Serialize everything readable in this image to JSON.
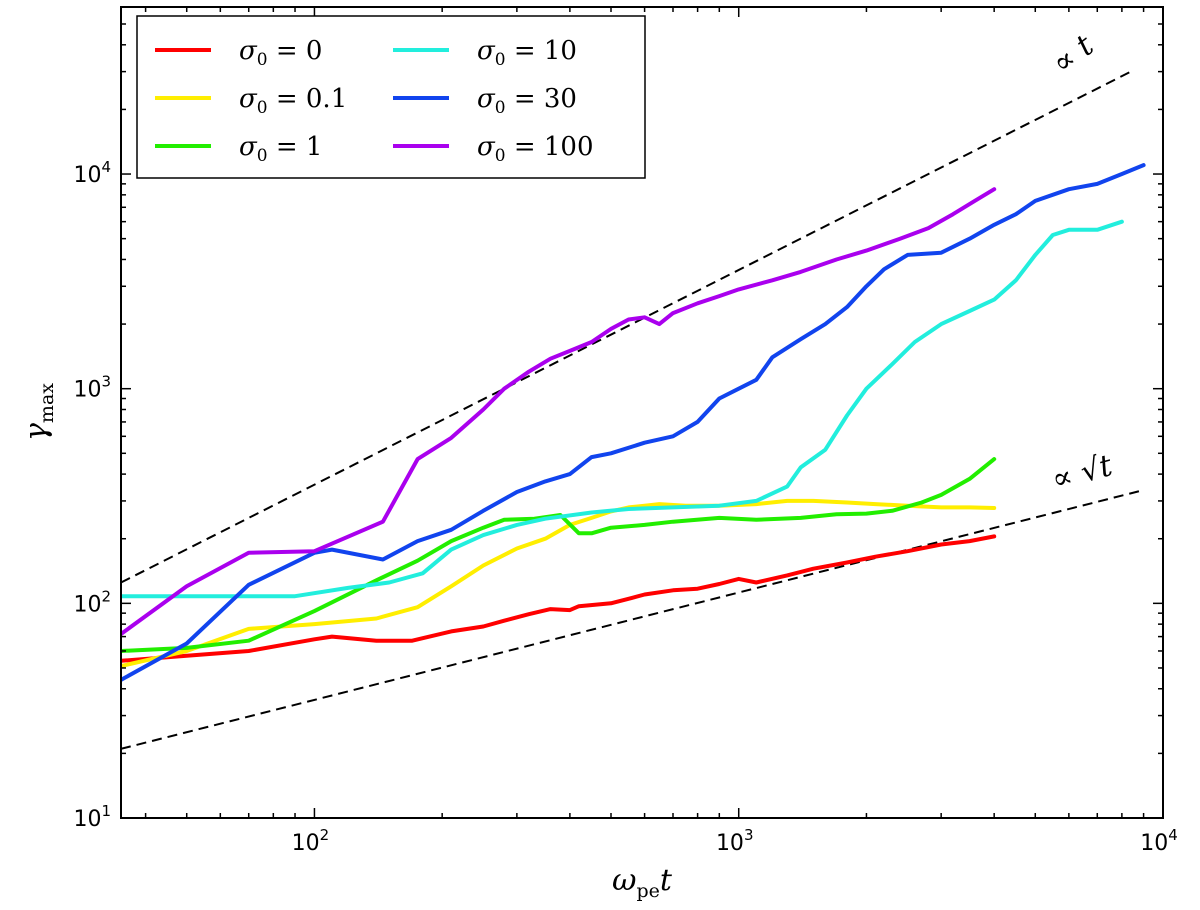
{
  "chart_data": {
    "type": "line",
    "xscale": "log",
    "yscale": "log",
    "xlim": [
      35,
      10000
    ],
    "ylim": [
      10,
      60000
    ],
    "x_tick_labels": [
      {
        "base": "10",
        "exp": "2",
        "value": 100
      },
      {
        "base": "10",
        "exp": "3",
        "value": 1000
      },
      {
        "base": "10",
        "exp": "4",
        "value": 10000
      }
    ],
    "y_tick_labels": [
      {
        "base": "10",
        "exp": "1",
        "value": 10
      },
      {
        "base": "10",
        "exp": "2",
        "value": 100
      },
      {
        "base": "10",
        "exp": "3",
        "value": 1000
      },
      {
        "base": "10",
        "exp": "4",
        "value": 10000
      }
    ],
    "xlabel": {
      "main": "ω",
      "sub": "pe",
      "tail": "t"
    },
    "ylabel": {
      "main": "γ",
      "sub": "max"
    },
    "grid": false,
    "legend_position": "top-left",
    "series": [
      {
        "name": "σ0 = 0",
        "label_sym": "σ",
        "label_sub": "0",
        "label_val": " = 0",
        "color": "#ff0000",
        "points": [
          [
            35,
            54
          ],
          [
            50,
            57
          ],
          [
            70,
            60
          ],
          [
            100,
            68
          ],
          [
            110,
            70
          ],
          [
            140,
            67
          ],
          [
            170,
            67
          ],
          [
            210,
            74
          ],
          [
            250,
            78
          ],
          [
            280,
            83
          ],
          [
            320,
            89
          ],
          [
            360,
            94
          ],
          [
            400,
            93
          ],
          [
            420,
            97
          ],
          [
            500,
            100
          ],
          [
            560,
            106
          ],
          [
            600,
            110
          ],
          [
            700,
            115
          ],
          [
            800,
            117
          ],
          [
            900,
            123
          ],
          [
            1000,
            130
          ],
          [
            1100,
            125
          ],
          [
            1300,
            135
          ],
          [
            1500,
            145
          ],
          [
            1800,
            155
          ],
          [
            2100,
            165
          ],
          [
            2500,
            175
          ],
          [
            3000,
            188
          ],
          [
            3500,
            195
          ],
          [
            4000,
            205
          ]
        ]
      },
      {
        "name": "σ0 = 0.1",
        "label_sym": "σ",
        "label_sub": "0",
        "label_val": " = 0.1",
        "color": "#ffee00",
        "points": [
          [
            35,
            51
          ],
          [
            50,
            60
          ],
          [
            70,
            76
          ],
          [
            100,
            80
          ],
          [
            140,
            85
          ],
          [
            175,
            96
          ],
          [
            210,
            120
          ],
          [
            250,
            150
          ],
          [
            300,
            180
          ],
          [
            350,
            200
          ],
          [
            400,
            232
          ],
          [
            450,
            250
          ],
          [
            500,
            268
          ],
          [
            550,
            280
          ],
          [
            600,
            285
          ],
          [
            650,
            290
          ],
          [
            750,
            285
          ],
          [
            900,
            285
          ],
          [
            1100,
            290
          ],
          [
            1300,
            300
          ],
          [
            1500,
            300
          ],
          [
            1800,
            295
          ],
          [
            2100,
            290
          ],
          [
            2500,
            285
          ],
          [
            3000,
            280
          ],
          [
            3500,
            280
          ],
          [
            4000,
            278
          ]
        ]
      },
      {
        "name": "σ0 = 1",
        "label_sym": "σ",
        "label_sub": "0",
        "label_val": " = 1",
        "color": "#22ee00",
        "points": [
          [
            35,
            60
          ],
          [
            50,
            62
          ],
          [
            70,
            67
          ],
          [
            100,
            92
          ],
          [
            140,
            128
          ],
          [
            175,
            158
          ],
          [
            210,
            195
          ],
          [
            250,
            225
          ],
          [
            280,
            245
          ],
          [
            330,
            248
          ],
          [
            380,
            258
          ],
          [
            420,
            212
          ],
          [
            450,
            212
          ],
          [
            500,
            225
          ],
          [
            600,
            232
          ],
          [
            700,
            240
          ],
          [
            900,
            250
          ],
          [
            1100,
            245
          ],
          [
            1400,
            250
          ],
          [
            1700,
            260
          ],
          [
            2000,
            262
          ],
          [
            2300,
            270
          ],
          [
            2700,
            295
          ],
          [
            3000,
            320
          ],
          [
            3500,
            380
          ],
          [
            4000,
            470
          ]
        ]
      },
      {
        "name": "σ0 = 10",
        "label_sym": "σ",
        "label_sub": "0",
        "label_val": " = 10",
        "color": "#22eedd",
        "points": [
          [
            35,
            108
          ],
          [
            50,
            108
          ],
          [
            90,
            108
          ],
          [
            120,
            118
          ],
          [
            150,
            125
          ],
          [
            180,
            138
          ],
          [
            210,
            178
          ],
          [
            250,
            208
          ],
          [
            300,
            232
          ],
          [
            350,
            248
          ],
          [
            450,
            265
          ],
          [
            550,
            275
          ],
          [
            700,
            280
          ],
          [
            900,
            285
          ],
          [
            1100,
            300
          ],
          [
            1300,
            350
          ],
          [
            1400,
            430
          ],
          [
            1600,
            520
          ],
          [
            1800,
            750
          ],
          [
            2000,
            1000
          ],
          [
            2300,
            1300
          ],
          [
            2600,
            1650
          ],
          [
            3000,
            2000
          ],
          [
            3500,
            2300
          ],
          [
            4000,
            2600
          ],
          [
            4500,
            3200
          ],
          [
            5000,
            4200
          ],
          [
            5500,
            5200
          ],
          [
            6000,
            5500
          ],
          [
            7000,
            5500
          ],
          [
            8000,
            6000
          ]
        ]
      },
      {
        "name": "σ0 = 30",
        "label_sym": "σ",
        "label_sub": "0",
        "label_val": " = 30",
        "color": "#1144ee",
        "points": [
          [
            35,
            44
          ],
          [
            50,
            65
          ],
          [
            70,
            122
          ],
          [
            100,
            172
          ],
          [
            110,
            178
          ],
          [
            145,
            160
          ],
          [
            175,
            195
          ],
          [
            210,
            220
          ],
          [
            250,
            270
          ],
          [
            300,
            330
          ],
          [
            350,
            370
          ],
          [
            400,
            400
          ],
          [
            450,
            480
          ],
          [
            500,
            500
          ],
          [
            600,
            560
          ],
          [
            700,
            600
          ],
          [
            800,
            700
          ],
          [
            900,
            900
          ],
          [
            1000,
            1000
          ],
          [
            1100,
            1100
          ],
          [
            1200,
            1400
          ],
          [
            1400,
            1700
          ],
          [
            1600,
            2000
          ],
          [
            1800,
            2400
          ],
          [
            2000,
            3000
          ],
          [
            2200,
            3600
          ],
          [
            2500,
            4200
          ],
          [
            3000,
            4300
          ],
          [
            3500,
            5000
          ],
          [
            4000,
            5800
          ],
          [
            4500,
            6500
          ],
          [
            5000,
            7500
          ],
          [
            6000,
            8500
          ],
          [
            7000,
            9000
          ],
          [
            8000,
            10000
          ],
          [
            9000,
            11000
          ]
        ]
      },
      {
        "name": "σ0 = 100",
        "label_sym": "σ",
        "label_sub": "0",
        "label_val": " = 100",
        "color": "#aa00ee",
        "points": [
          [
            35,
            72
          ],
          [
            50,
            120
          ],
          [
            70,
            172
          ],
          [
            100,
            175
          ],
          [
            145,
            240
          ],
          [
            175,
            470
          ],
          [
            210,
            590
          ],
          [
            250,
            800
          ],
          [
            280,
            1000
          ],
          [
            320,
            1200
          ],
          [
            360,
            1380
          ],
          [
            400,
            1500
          ],
          [
            450,
            1650
          ],
          [
            500,
            1900
          ],
          [
            550,
            2100
          ],
          [
            600,
            2150
          ],
          [
            650,
            2000
          ],
          [
            700,
            2250
          ],
          [
            800,
            2500
          ],
          [
            900,
            2700
          ],
          [
            1000,
            2900
          ],
          [
            1200,
            3200
          ],
          [
            1400,
            3500
          ],
          [
            1700,
            4000
          ],
          [
            2000,
            4400
          ],
          [
            2400,
            5000
          ],
          [
            2800,
            5600
          ],
          [
            3200,
            6500
          ],
          [
            3600,
            7500
          ],
          [
            4000,
            8500
          ]
        ]
      }
    ],
    "reference_lines": [
      {
        "label": "∝ t",
        "x": [
          35,
          8500
        ],
        "y": [
          125,
          30375
        ]
      },
      {
        "label": "∝ √t",
        "x": [
          35,
          9000
        ],
        "y": [
          21,
          337
        ]
      }
    ]
  }
}
